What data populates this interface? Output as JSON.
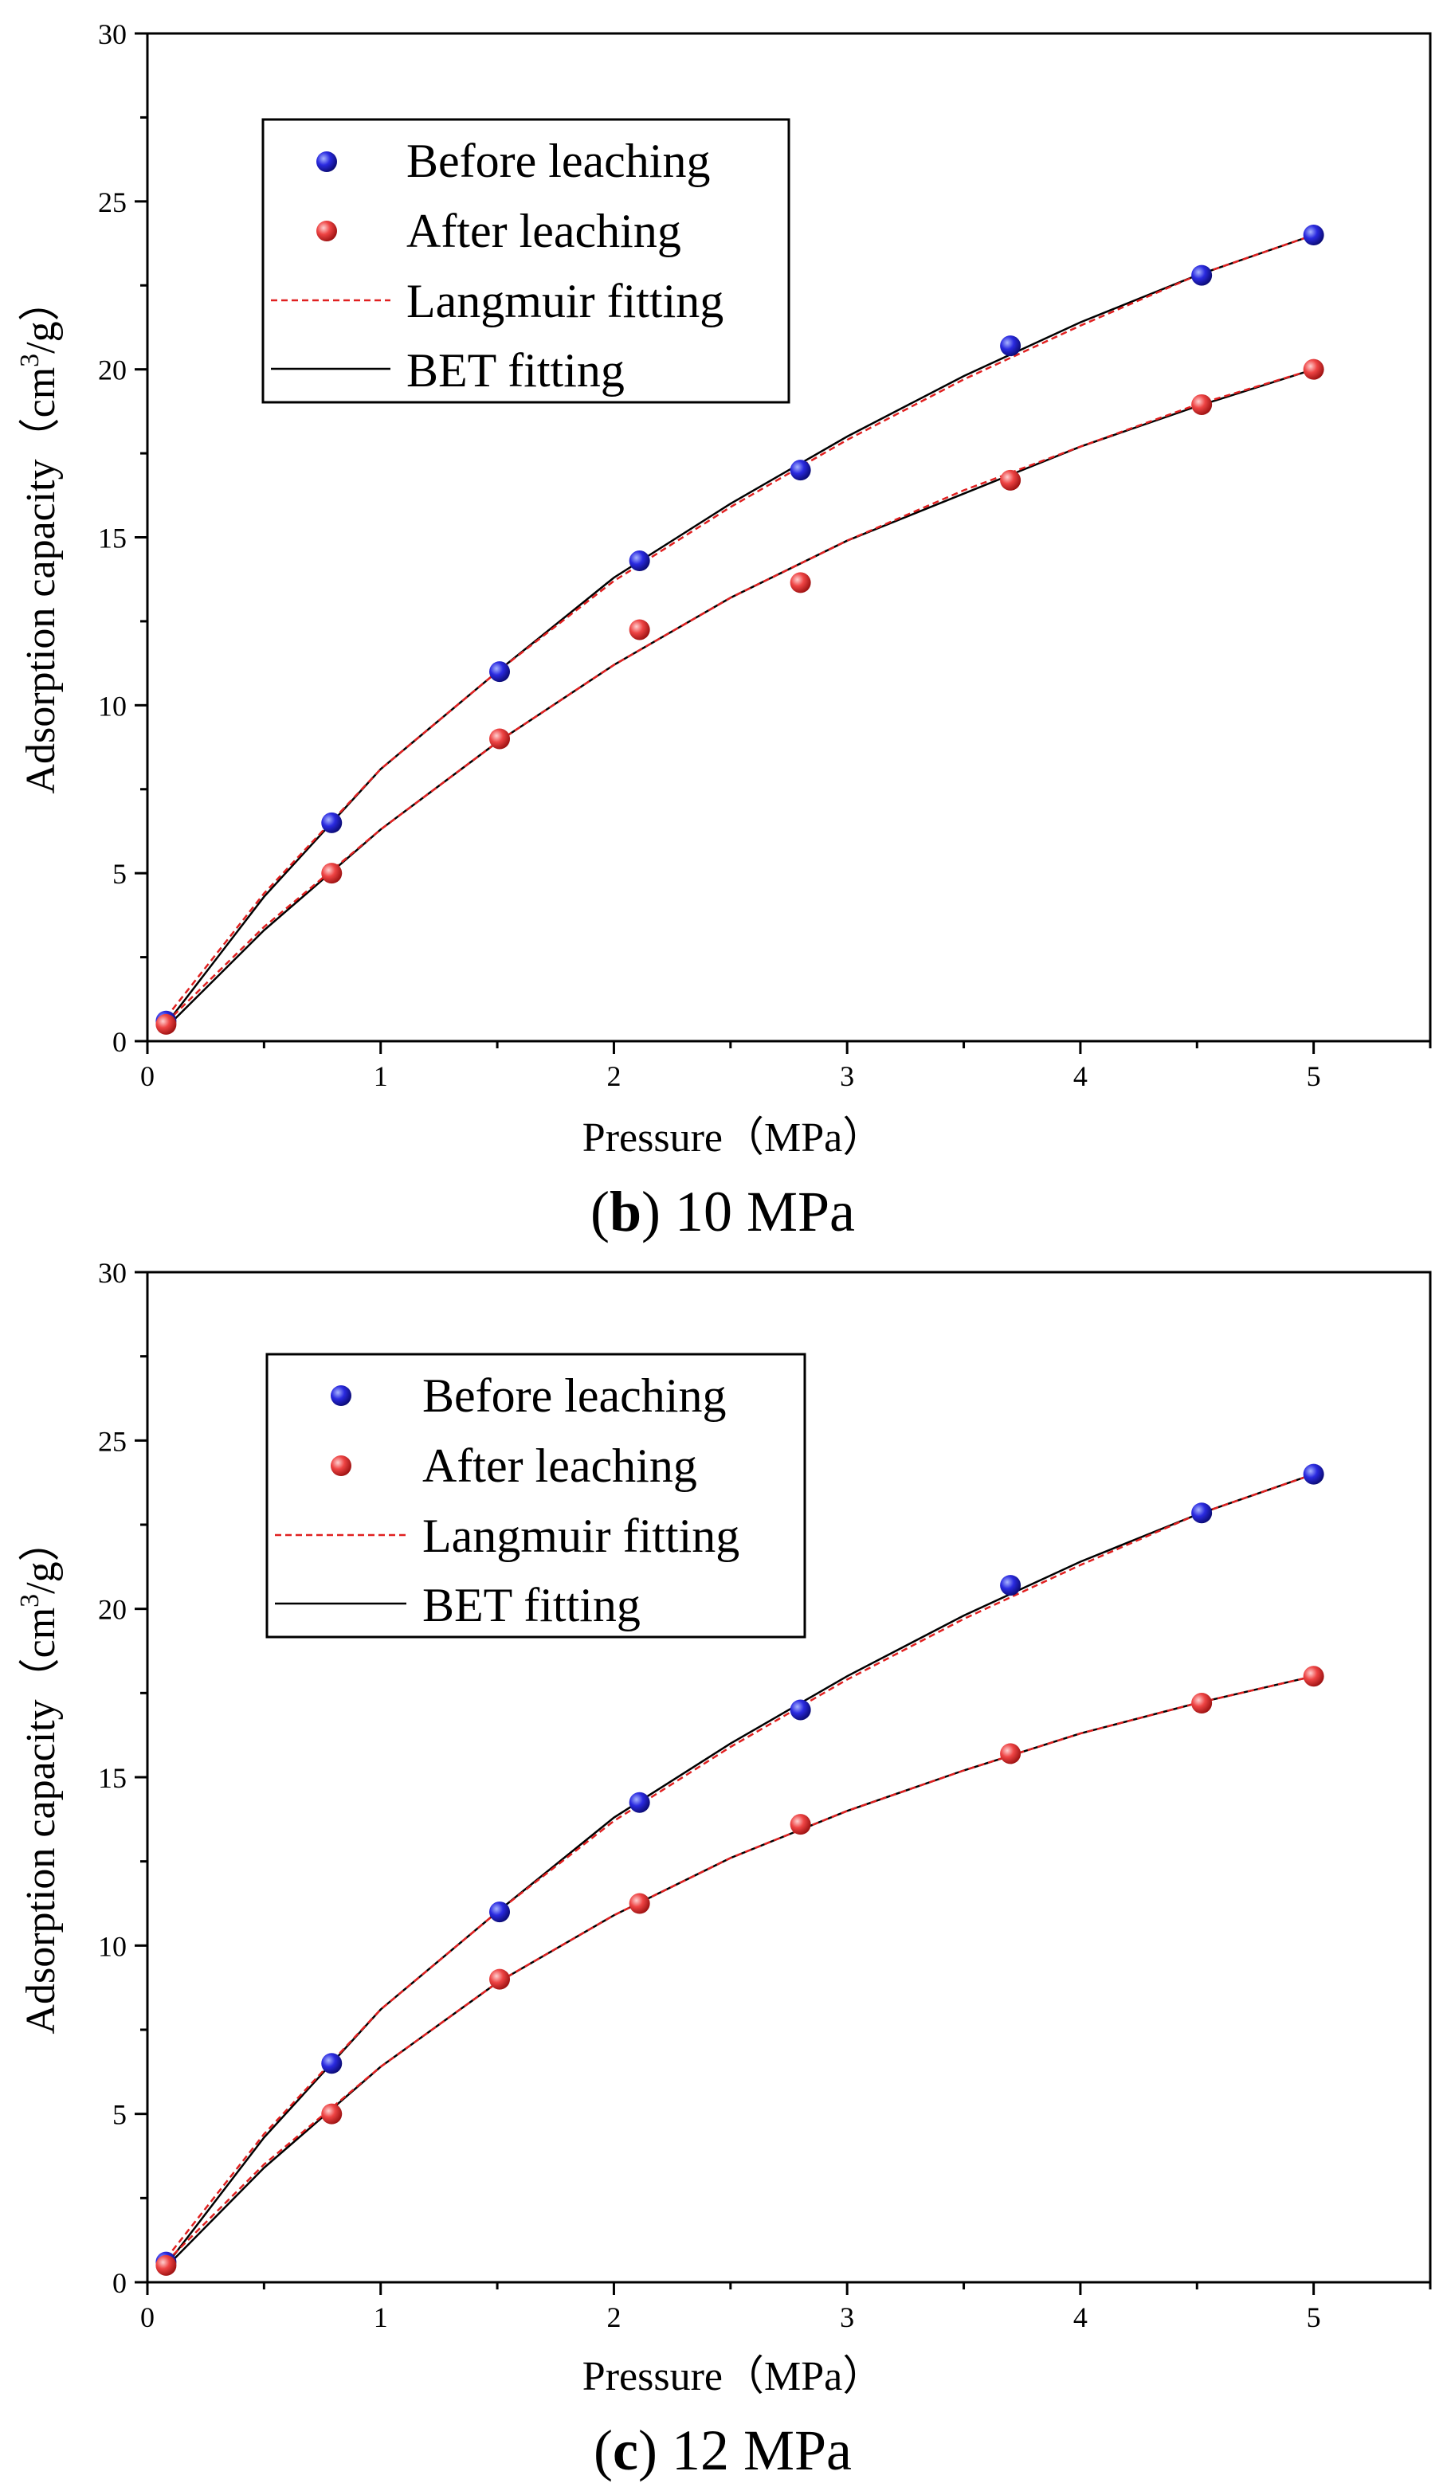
{
  "chart_data": [
    {
      "type": "scatter",
      "caption": {
        "letter": "b",
        "rest": " 10 MPa",
        "open": "(",
        "close": ")"
      },
      "xlabel": "Pressure（MPa）",
      "ylabel": {
        "pre": "Adsorption capacity（cm",
        "sup": "3",
        "post": "/g）"
      },
      "xlim": [
        0,
        5.5
      ],
      "ylim": [
        0,
        30
      ],
      "xticks": [
        0,
        1,
        2,
        3,
        4,
        5
      ],
      "yticks": [
        0,
        5,
        10,
        15,
        20,
        25,
        30
      ],
      "legend": [
        "Before leaching",
        "After leaching",
        "Langmuir fitting",
        "BET fitting"
      ],
      "colors": {
        "before": "#1f1fd6",
        "after": "#e83a3a",
        "langmuir": "#e02020",
        "bet": "#000000"
      },
      "series": [
        {
          "name": "Before leaching",
          "x": [
            0.08,
            0.79,
            1.51,
            2.11,
            2.8,
            3.7,
            4.52,
            5.0
          ],
          "y": [
            0.6,
            6.5,
            11.0,
            14.3,
            17.0,
            20.7,
            22.8,
            24.0
          ]
        },
        {
          "name": "After leaching",
          "x": [
            0.08,
            0.79,
            1.51,
            2.11,
            2.8,
            3.7,
            4.52,
            5.0
          ],
          "y": [
            0.5,
            5.0,
            9.0,
            12.25,
            13.65,
            16.7,
            18.95,
            20.0
          ]
        }
      ],
      "fits": {
        "langmuir": [
          {
            "x": [
              0.08,
              0.5,
              1.0,
              1.5,
              2.0,
              2.5,
              3.0,
              3.5,
              4.0,
              4.5,
              5.0
            ],
            "y": [
              0.7,
              4.4,
              8.1,
              11.0,
              13.7,
              15.9,
              17.9,
              19.7,
              21.3,
              22.8,
              24.0
            ]
          },
          {
            "x": [
              0.08,
              0.5,
              1.0,
              1.5,
              2.0,
              2.5,
              3.0,
              3.5,
              4.0,
              4.5,
              5.0
            ],
            "y": [
              0.55,
              3.4,
              6.3,
              8.9,
              11.2,
              13.2,
              14.9,
              16.4,
              17.7,
              18.95,
              20.0
            ]
          }
        ],
        "bet": [
          {
            "x": [
              0.08,
              0.5,
              1.0,
              1.5,
              2.0,
              2.5,
              3.0,
              3.5,
              4.0,
              4.5,
              5.0
            ],
            "y": [
              0.5,
              4.3,
              8.1,
              11.0,
              13.8,
              16.0,
              18.0,
              19.8,
              21.4,
              22.8,
              24.0
            ]
          },
          {
            "x": [
              0.08,
              0.5,
              1.0,
              1.5,
              2.0,
              2.5,
              3.0,
              3.5,
              4.0,
              4.5,
              5.0
            ],
            "y": [
              0.4,
              3.3,
              6.3,
              8.9,
              11.2,
              13.2,
              14.9,
              16.3,
              17.7,
              18.9,
              20.0
            ]
          }
        ]
      }
    },
    {
      "type": "scatter",
      "caption": {
        "letter": "c",
        "rest": " 12 MPa",
        "open": "(",
        "close": ")"
      },
      "xlabel": "Pressure（MPa）",
      "ylabel": {
        "pre": "Adsorption capacity（cm",
        "sup": "3",
        "post": "/g）"
      },
      "xlim": [
        0,
        5.5
      ],
      "ylim": [
        0,
        30
      ],
      "xticks": [
        0,
        1,
        2,
        3,
        4,
        5
      ],
      "yticks": [
        0,
        5,
        10,
        15,
        20,
        25,
        30
      ],
      "legend": [
        "Before leaching",
        "After leaching",
        "Langmuir fitting",
        "BET fitting"
      ],
      "colors": {
        "before": "#1f1fd6",
        "after": "#e83a3a",
        "langmuir": "#e02020",
        "bet": "#000000"
      },
      "series": [
        {
          "name": "Before leaching",
          "x": [
            0.08,
            0.79,
            1.51,
            2.11,
            2.8,
            3.7,
            4.52,
            5.0
          ],
          "y": [
            0.6,
            6.5,
            11.0,
            14.25,
            17.0,
            20.7,
            22.85,
            24.0
          ]
        },
        {
          "name": "After leaching",
          "x": [
            0.08,
            0.79,
            1.51,
            2.11,
            2.8,
            3.7,
            4.52,
            5.0
          ],
          "y": [
            0.5,
            5.0,
            9.0,
            11.25,
            13.6,
            15.7,
            17.2,
            18.0
          ]
        }
      ],
      "fits": {
        "langmuir": [
          {
            "x": [
              0.08,
              0.5,
              1.0,
              1.5,
              2.0,
              2.5,
              3.0,
              3.5,
              4.0,
              4.5,
              5.0
            ],
            "y": [
              0.7,
              4.4,
              8.1,
              11.0,
              13.7,
              15.9,
              17.9,
              19.7,
              21.3,
              22.8,
              24.0
            ]
          },
          {
            "x": [
              0.08,
              0.5,
              1.0,
              1.5,
              2.0,
              2.5,
              3.0,
              3.5,
              4.0,
              4.5,
              5.0
            ],
            "y": [
              0.6,
              3.5,
              6.4,
              8.9,
              10.9,
              12.6,
              14.0,
              15.2,
              16.3,
              17.2,
              18.0
            ]
          }
        ],
        "bet": [
          {
            "x": [
              0.08,
              0.5,
              1.0,
              1.5,
              2.0,
              2.5,
              3.0,
              3.5,
              4.0,
              4.5,
              5.0
            ],
            "y": [
              0.5,
              4.3,
              8.1,
              11.0,
              13.8,
              16.0,
              18.0,
              19.8,
              21.4,
              22.8,
              24.0
            ]
          },
          {
            "x": [
              0.08,
              0.5,
              1.0,
              1.5,
              2.0,
              2.5,
              3.0,
              3.5,
              4.0,
              4.5,
              5.0
            ],
            "y": [
              0.45,
              3.4,
              6.4,
              8.9,
              10.9,
              12.6,
              14.0,
              15.2,
              16.3,
              17.2,
              18.0
            ]
          }
        ]
      }
    }
  ]
}
